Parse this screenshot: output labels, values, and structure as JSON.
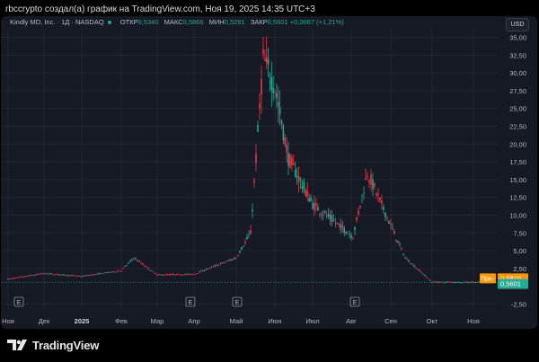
{
  "caption": "rbccrypto создал(а) график на TradingView.com, Ноя 19, 2025 14:35 UTC+3",
  "legend": {
    "symbol": "Kindly MD, Inc. · 1Д · NASDAQ",
    "open_label": "ОТКР",
    "open": "0,5340",
    "high_label": "МАКС",
    "high": "0,5866",
    "low_label": "МИН",
    "low": "0,5291",
    "close_label": "ЗАКР",
    "close": "0,5601",
    "change": "+0,0067 (+1,21%)"
  },
  "currency_button": "USD",
  "price_tags": {
    "premarket_label": "Пре-",
    "premarket_value": "0,5810",
    "last_value": "0,5601"
  },
  "earnings_marker": "E",
  "brand": "TradingView",
  "colors": {
    "up": "#22ab94",
    "down": "#f23645",
    "premarket": "#ff9800",
    "background": "#161a25",
    "grid": "#232733"
  },
  "chart_data": {
    "type": "candlestick",
    "y_axis_ticks": [
      "35,00",
      "32,50",
      "30,00",
      "27,50",
      "25,00",
      "22,50",
      "20,00",
      "17,50",
      "15,00",
      "12,50",
      "10,00",
      "7,50",
      "5,00",
      "2,50",
      "-2,50"
    ],
    "x_axis_ticks": [
      "Ноя",
      "Дек",
      "2025",
      "Фев",
      "Мар",
      "Апр",
      "Май",
      "Июн",
      "Июл",
      "Авг",
      "Сен",
      "Окт",
      "Ноя"
    ],
    "ylim": [
      -3.2,
      36.2
    ],
    "earnings_markers": [
      "Дек",
      "Апр",
      "Май",
      "Авг"
    ],
    "anchors": [
      {
        "x": "Ноя",
        "close": 1.0
      },
      {
        "x": "Дек",
        "close": 1.8
      },
      {
        "x": "2025",
        "close": 1.4
      },
      {
        "x": "Фев",
        "close": 2.2
      },
      {
        "x": "Фев",
        "close": 4.0
      },
      {
        "x": "Мар",
        "close": 1.6
      },
      {
        "x": "Апр",
        "close": 1.7
      },
      {
        "x": "Май",
        "close": 4.0
      },
      {
        "x": "Май",
        "close": 7.5
      },
      {
        "x": "Май",
        "close": 32.0
      },
      {
        "x": "Июн",
        "close": 28.0
      },
      {
        "x": "Июн",
        "close": 18.0
      },
      {
        "x": "Июл",
        "close": 11.5
      },
      {
        "x": "Авг",
        "close": 7.0
      },
      {
        "x": "Авг",
        "close": 16.0
      },
      {
        "x": "Сен",
        "close": 4.0
      },
      {
        "x": "Окт",
        "close": 0.6
      },
      {
        "x": "Ноя",
        "close": 0.5601
      }
    ],
    "last": {
      "open": 0.534,
      "high": 0.5866,
      "low": 0.5291,
      "close": 0.5601
    }
  }
}
